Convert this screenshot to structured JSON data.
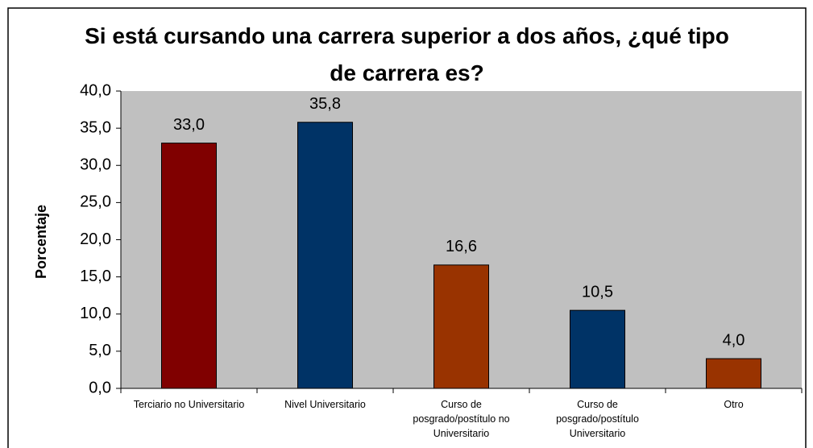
{
  "chart_data": {
    "type": "bar",
    "title": "Si está cursando una carrera superior a dos años, ¿qué tipo de carrera es?",
    "y_label": "Porcentaje",
    "categories": [
      "Terciario no Universitario",
      "Nivel Universitario",
      "Curso de posgrado/postítulo no Universitario",
      "Curso de posgrado/postítulo Universitario",
      "Otro"
    ],
    "values": [
      33.0,
      35.8,
      16.6,
      10.5,
      4.0
    ],
    "value_labels": [
      "33,0",
      "35,8",
      "16,6",
      "10,5",
      "4,0"
    ],
    "colors": [
      "#800000",
      "#003366",
      "#993300",
      "#003366",
      "#993300"
    ],
    "ylim": [
      0,
      40
    ],
    "yticks": [
      {
        "value": 0,
        "label": "0,0"
      },
      {
        "value": 5,
        "label": "5,0"
      },
      {
        "value": 10,
        "label": "10,0"
      },
      {
        "value": 15,
        "label": "15,0"
      },
      {
        "value": 20,
        "label": "20,0"
      },
      {
        "value": 25,
        "label": "25,0"
      },
      {
        "value": 30,
        "label": "30,0"
      },
      {
        "value": 35,
        "label": "35,0"
      },
      {
        "value": 40,
        "label": "40,0"
      }
    ],
    "grid": false
  }
}
